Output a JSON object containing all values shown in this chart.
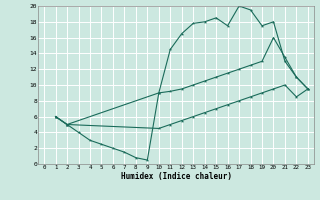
{
  "xlabel": "Humidex (Indice chaleur)",
  "bg_color": "#cce8e0",
  "line_color": "#1a6b5a",
  "grid_color": "#ffffff",
  "xlim": [
    -0.5,
    23.5
  ],
  "ylim": [
    0,
    20
  ],
  "xticks": [
    0,
    1,
    2,
    3,
    4,
    5,
    6,
    7,
    8,
    9,
    10,
    11,
    12,
    13,
    14,
    15,
    16,
    17,
    18,
    19,
    20,
    21,
    22,
    23
  ],
  "yticks": [
    0,
    2,
    4,
    6,
    8,
    10,
    12,
    14,
    16,
    18,
    20
  ],
  "line1_x": [
    1,
    2,
    3,
    4,
    5,
    6,
    7,
    8,
    9,
    10,
    11,
    12,
    13,
    14,
    15,
    16,
    17,
    18,
    19,
    20,
    21,
    22,
    23
  ],
  "line1_y": [
    6,
    5,
    4,
    3,
    2.5,
    2,
    1.5,
    0.8,
    0.5,
    9.0,
    14.5,
    16.5,
    17.8,
    18.0,
    18.5,
    17.5,
    20.0,
    19.5,
    17.5,
    18.0,
    13.0,
    11.0,
    9.5
  ],
  "line2_x": [
    1,
    2,
    10,
    11,
    12,
    13,
    14,
    15,
    16,
    17,
    18,
    19,
    20,
    21,
    22,
    23
  ],
  "line2_y": [
    6,
    5,
    9,
    9.2,
    9.5,
    10.0,
    10.5,
    11.0,
    11.5,
    12.0,
    12.5,
    13.0,
    16.0,
    13.5,
    11.0,
    9.5
  ],
  "line3_x": [
    1,
    2,
    10,
    11,
    12,
    13,
    14,
    15,
    16,
    17,
    18,
    19,
    20,
    21,
    22,
    23
  ],
  "line3_y": [
    6,
    5,
    4.5,
    5.0,
    5.5,
    6.0,
    6.5,
    7.0,
    7.5,
    8.0,
    8.5,
    9.0,
    9.5,
    10.0,
    8.5,
    9.5
  ]
}
